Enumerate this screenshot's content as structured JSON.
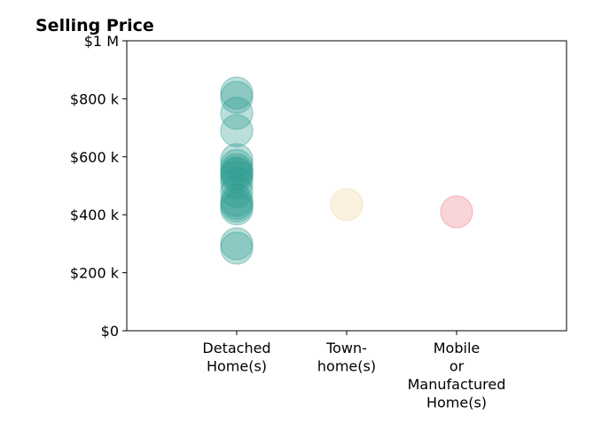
{
  "chart_data": {
    "type": "scatter",
    "title": "Selling Price",
    "xlabel": "",
    "ylabel": "",
    "grid": false,
    "ylim": [
      0,
      1000000
    ],
    "y_ticks": [
      {
        "value": 0,
        "label": "$0"
      },
      {
        "value": 200000,
        "label": "$200 k"
      },
      {
        "value": 400000,
        "label": "$400 k"
      },
      {
        "value": 600000,
        "label": "$600 k"
      },
      {
        "value": 800000,
        "label": "$800 k"
      },
      {
        "value": 1000000,
        "label": "$1 M"
      }
    ],
    "categories": [
      {
        "label_lines": [
          "Detached",
          "Home(s)"
        ]
      },
      {
        "label_lines": [
          "Town-",
          "home(s)"
        ]
      },
      {
        "label_lines": [
          "Mobile",
          "or",
          "Manufactured",
          "Home(s)"
        ]
      }
    ],
    "series": [
      {
        "category_index": 0,
        "color": "#2a9d8f",
        "values": [
          820000,
          805000,
          750000,
          690000,
          590000,
          570000,
          555000,
          545000,
          540000,
          530000,
          510000,
          480000,
          450000,
          440000,
          430000,
          420000,
          300000,
          285000
        ]
      },
      {
        "category_index": 1,
        "color": "#f2d49b",
        "values": [
          435000
        ]
      },
      {
        "category_index": 2,
        "color": "#ef7c86",
        "values": [
          410000
        ]
      }
    ]
  }
}
